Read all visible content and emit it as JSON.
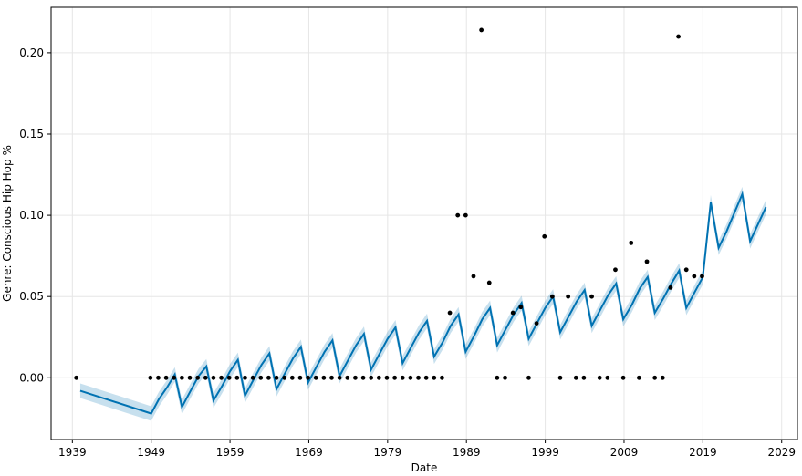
{
  "chart_data": {
    "type": "line",
    "title": "",
    "xlabel": "Date",
    "ylabel": "Genre: Conscious Hip Hop %",
    "xlim": [
      1936.3,
      2031.0
    ],
    "ylim": [
      -0.038,
      0.228
    ],
    "x_ticks": [
      1939,
      1949,
      1959,
      1969,
      1979,
      1989,
      1999,
      2009,
      2019,
      2029
    ],
    "y_ticks": [
      0.0,
      0.05,
      0.1,
      0.15,
      0.2
    ],
    "y_tick_labels": [
      "0.00",
      "0.05",
      "0.10",
      "0.15",
      "0.20"
    ],
    "grid": true,
    "colors": {
      "forecast_line": "#0072B2",
      "uncertainty_band": "#0072B2",
      "observed_points": "#000000",
      "grid": "#e6e6e6",
      "axes": "#000000"
    },
    "observed": [
      [
        1939.5,
        0.0
      ],
      [
        1948.9,
        0.0
      ],
      [
        1949.9,
        0.0
      ],
      [
        1950.9,
        0.0
      ],
      [
        1951.9,
        0.0
      ],
      [
        1952.9,
        0.0
      ],
      [
        1953.9,
        0.0
      ],
      [
        1954.9,
        0.0
      ],
      [
        1955.9,
        0.0
      ],
      [
        1956.9,
        0.0
      ],
      [
        1957.9,
        0.0
      ],
      [
        1958.9,
        0.0
      ],
      [
        1959.9,
        0.0
      ],
      [
        1960.9,
        0.0
      ],
      [
        1961.9,
        0.0
      ],
      [
        1962.9,
        0.0
      ],
      [
        1963.9,
        0.0
      ],
      [
        1964.9,
        0.0
      ],
      [
        1965.9,
        0.0
      ],
      [
        1966.9,
        0.0
      ],
      [
        1967.9,
        0.0
      ],
      [
        1968.9,
        0.0
      ],
      [
        1969.9,
        0.0
      ],
      [
        1970.9,
        0.0
      ],
      [
        1971.9,
        0.0
      ],
      [
        1972.9,
        0.0
      ],
      [
        1973.9,
        0.0
      ],
      [
        1974.9,
        0.0
      ],
      [
        1975.9,
        0.0
      ],
      [
        1976.9,
        0.0
      ],
      [
        1977.9,
        0.0
      ],
      [
        1978.9,
        0.0
      ],
      [
        1979.9,
        0.0
      ],
      [
        1980.9,
        0.0
      ],
      [
        1981.9,
        0.0
      ],
      [
        1982.9,
        0.0
      ],
      [
        1983.9,
        0.0
      ],
      [
        1984.9,
        0.0
      ],
      [
        1985.9,
        0.0
      ],
      [
        1986.9,
        0.04
      ],
      [
        1987.9,
        0.1
      ],
      [
        1988.9,
        0.1
      ],
      [
        1989.9,
        0.0625
      ],
      [
        1990.9,
        0.214
      ],
      [
        1991.9,
        0.0585
      ],
      [
        1992.9,
        0.0
      ],
      [
        1993.9,
        0.0
      ],
      [
        1994.9,
        0.04
      ],
      [
        1995.9,
        0.0435
      ],
      [
        1996.9,
        0.0
      ],
      [
        1997.9,
        0.0335
      ],
      [
        1998.9,
        0.087
      ],
      [
        1999.9,
        0.05
      ],
      [
        2000.9,
        0.0
      ],
      [
        2001.9,
        0.05
      ],
      [
        2002.9,
        0.0
      ],
      [
        2003.9,
        0.0
      ],
      [
        2004.9,
        0.05
      ],
      [
        2005.9,
        0.0
      ],
      [
        2006.9,
        0.0
      ],
      [
        2007.9,
        0.0665
      ],
      [
        2008.9,
        0.0
      ],
      [
        2009.9,
        0.083
      ],
      [
        2010.9,
        0.0
      ],
      [
        2011.9,
        0.0715
      ],
      [
        2012.9,
        0.0
      ],
      [
        2013.9,
        0.0
      ],
      [
        2014.9,
        0.0555
      ],
      [
        2015.9,
        0.21
      ],
      [
        2016.9,
        0.0665
      ],
      [
        2017.9,
        0.0625
      ],
      [
        2018.9,
        0.0625
      ]
    ],
    "forecast": [
      [
        1940.0,
        -0.008
      ],
      [
        1949.0,
        -0.022
      ],
      [
        1950.0,
        -0.013
      ],
      [
        1951.0,
        -0.006
      ],
      [
        1952.0,
        0.002
      ],
      [
        1952.9,
        -0.018
      ],
      [
        1954.0,
        -0.008
      ],
      [
        1955.0,
        0.001
      ],
      [
        1956.0,
        0.007
      ],
      [
        1956.9,
        -0.014
      ],
      [
        1958.0,
        -0.005
      ],
      [
        1959.0,
        0.004
      ],
      [
        1960.0,
        0.011
      ],
      [
        1960.9,
        -0.011
      ],
      [
        1962.0,
        -0.001
      ],
      [
        1963.0,
        0.008
      ],
      [
        1964.0,
        0.015
      ],
      [
        1964.9,
        -0.007
      ],
      [
        1966.0,
        0.003
      ],
      [
        1967.0,
        0.012
      ],
      [
        1968.0,
        0.019
      ],
      [
        1968.9,
        -0.003
      ],
      [
        1970.0,
        0.007
      ],
      [
        1971.0,
        0.016
      ],
      [
        1972.0,
        0.023
      ],
      [
        1972.9,
        0.001
      ],
      [
        1974.0,
        0.011
      ],
      [
        1975.0,
        0.02
      ],
      [
        1976.0,
        0.027
      ],
      [
        1976.9,
        0.005
      ],
      [
        1978.0,
        0.015
      ],
      [
        1979.0,
        0.024
      ],
      [
        1980.0,
        0.031
      ],
      [
        1980.9,
        0.009
      ],
      [
        1982.0,
        0.019
      ],
      [
        1983.0,
        0.028
      ],
      [
        1984.0,
        0.035
      ],
      [
        1984.9,
        0.013
      ],
      [
        1986.0,
        0.022
      ],
      [
        1987.0,
        0.032
      ],
      [
        1988.0,
        0.039
      ],
      [
        1988.9,
        0.016
      ],
      [
        1990.0,
        0.026
      ],
      [
        1991.0,
        0.036
      ],
      [
        1992.0,
        0.043
      ],
      [
        1992.9,
        0.02
      ],
      [
        1994.0,
        0.03
      ],
      [
        1995.0,
        0.039
      ],
      [
        1996.0,
        0.046
      ],
      [
        1996.9,
        0.024
      ],
      [
        1998.0,
        0.034
      ],
      [
        1999.0,
        0.043
      ],
      [
        2000.0,
        0.05
      ],
      [
        2000.9,
        0.028
      ],
      [
        2002.0,
        0.038
      ],
      [
        2003.0,
        0.047
      ],
      [
        2004.0,
        0.054
      ],
      [
        2004.9,
        0.032
      ],
      [
        2006.0,
        0.042
      ],
      [
        2007.0,
        0.051
      ],
      [
        2008.0,
        0.058
      ],
      [
        2008.9,
        0.036
      ],
      [
        2010.0,
        0.045
      ],
      [
        2011.0,
        0.055
      ],
      [
        2012.0,
        0.062
      ],
      [
        2012.9,
        0.04
      ],
      [
        2014.0,
        0.049
      ],
      [
        2015.0,
        0.058
      ],
      [
        2016.0,
        0.066
      ],
      [
        2016.9,
        0.043
      ],
      [
        2018.0,
        0.053
      ],
      [
        2019.0,
        0.062
      ],
      [
        2020.0,
        0.108
      ],
      [
        2021.0,
        0.08
      ],
      [
        2022.0,
        0.09
      ],
      [
        2024.0,
        0.113
      ],
      [
        2025.0,
        0.084
      ],
      [
        2027.0,
        0.105
      ]
    ],
    "band_halfwidth": 0.0045
  }
}
